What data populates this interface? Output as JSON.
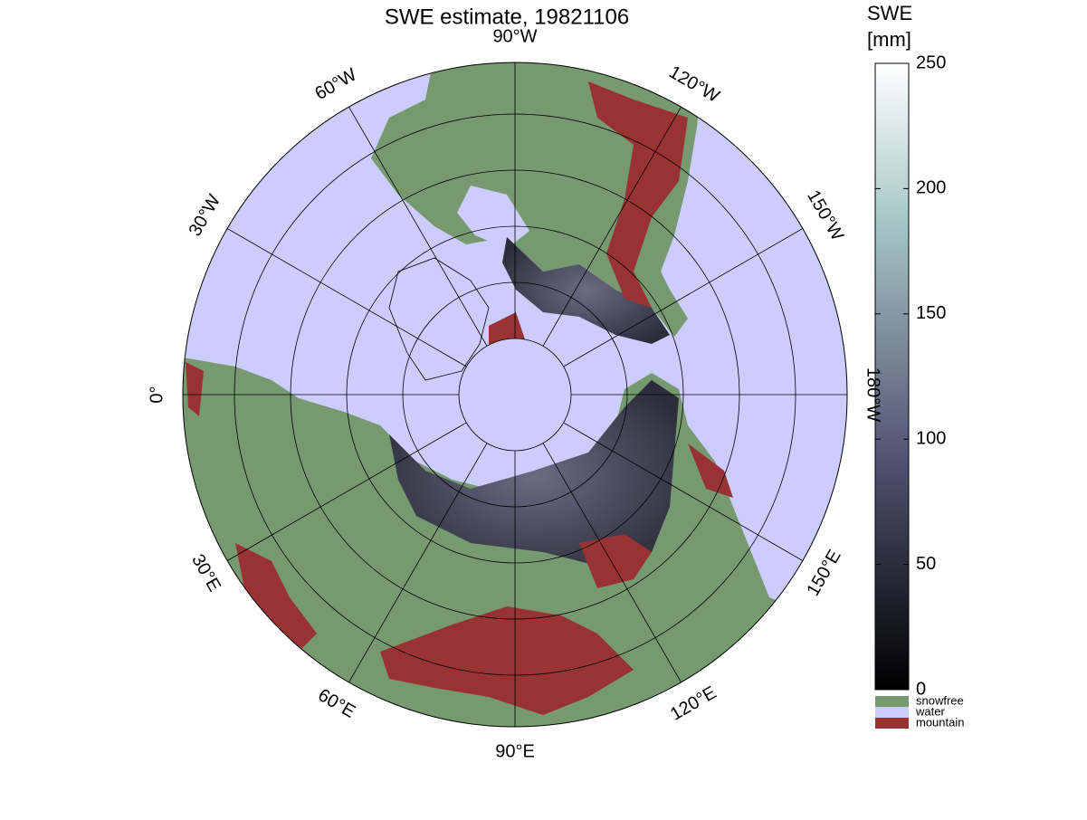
{
  "map": {
    "title": "SWE estimate, 19821106",
    "longitude_labels": [
      "0°",
      "30°E",
      "60°E",
      "90°E",
      "120°E",
      "150°E",
      "180°W",
      "150°W",
      "120°W",
      "90°W",
      "60°W",
      "30°W"
    ],
    "colorbar": {
      "label": [
        "SWE",
        "[mm]"
      ],
      "lim": [
        0,
        250
      ],
      "ticks": [
        0,
        50,
        100,
        150,
        200,
        250
      ]
    },
    "legend": [
      {
        "name": "snowfree",
        "color": "#76996f"
      },
      {
        "name": "water",
        "color": "#ccccff"
      },
      {
        "name": "mountain",
        "color": "#993333"
      }
    ]
  }
}
